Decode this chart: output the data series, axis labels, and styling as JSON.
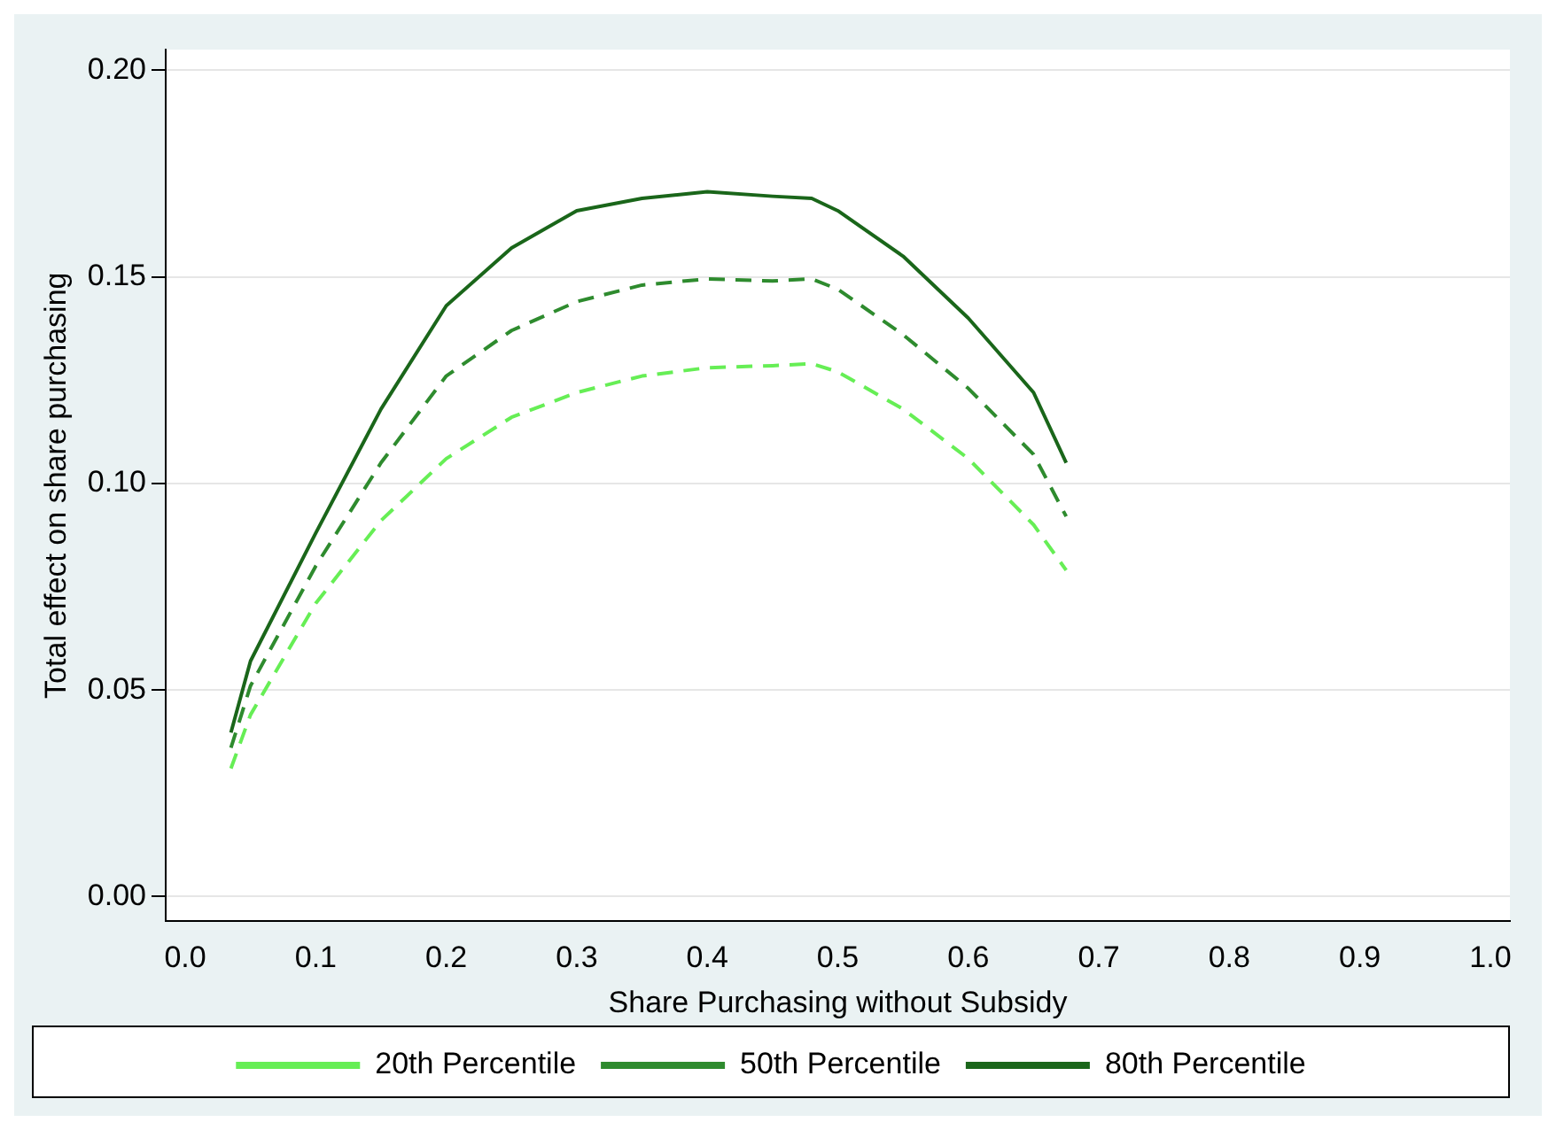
{
  "chart_data": {
    "type": "line",
    "xlabel": "Share Purchasing without Subsidy",
    "ylabel": "Total effect on share purchasing",
    "x": [
      0.035,
      0.05,
      0.1,
      0.15,
      0.2,
      0.25,
      0.3,
      0.35,
      0.4,
      0.45,
      0.48,
      0.5,
      0.55,
      0.6,
      0.65,
      0.675
    ],
    "series": [
      {
        "name": "20th Percentile",
        "color": "#66ee55",
        "line_style": "dashed",
        "values": [
          0.031,
          0.044,
          0.071,
          0.091,
          0.106,
          0.116,
          0.122,
          0.126,
          0.128,
          0.1285,
          0.129,
          0.127,
          0.118,
          0.106,
          0.09,
          0.079
        ]
      },
      {
        "name": "50th Percentile",
        "color": "#2e8b2e",
        "line_style": "dashed",
        "values": [
          0.036,
          0.051,
          0.08,
          0.105,
          0.126,
          0.137,
          0.144,
          0.148,
          0.1495,
          0.149,
          0.1495,
          0.147,
          0.136,
          0.123,
          0.107,
          0.092
        ]
      },
      {
        "name": "80th Percentile",
        "color": "#1a661a",
        "line_style": "solid",
        "values": [
          0.0397,
          0.057,
          0.088,
          0.118,
          0.143,
          0.157,
          0.166,
          0.169,
          0.1706,
          0.1695,
          0.169,
          0.166,
          0.155,
          0.14,
          0.122,
          0.105
        ]
      }
    ],
    "xlim": [
      -0.015,
      1.015
    ],
    "ylim": [
      -0.006,
      0.205
    ],
    "xticks": [
      {
        "value": 0,
        "label": "0.0"
      },
      0.1,
      0.2,
      0.3,
      0.4,
      0.5,
      0.6,
      0.7,
      0.8,
      0.9,
      {
        "value": 1,
        "label": "1.0"
      }
    ],
    "yticks": [
      {
        "value": 0,
        "label": "0.00"
      },
      0.05,
      {
        "value": 0.1,
        "label": "0.10"
      },
      0.15,
      {
        "value": 0.2,
        "label": "0.20"
      }
    ],
    "grid": "y",
    "legend": "bottom",
    "marker": "none"
  }
}
